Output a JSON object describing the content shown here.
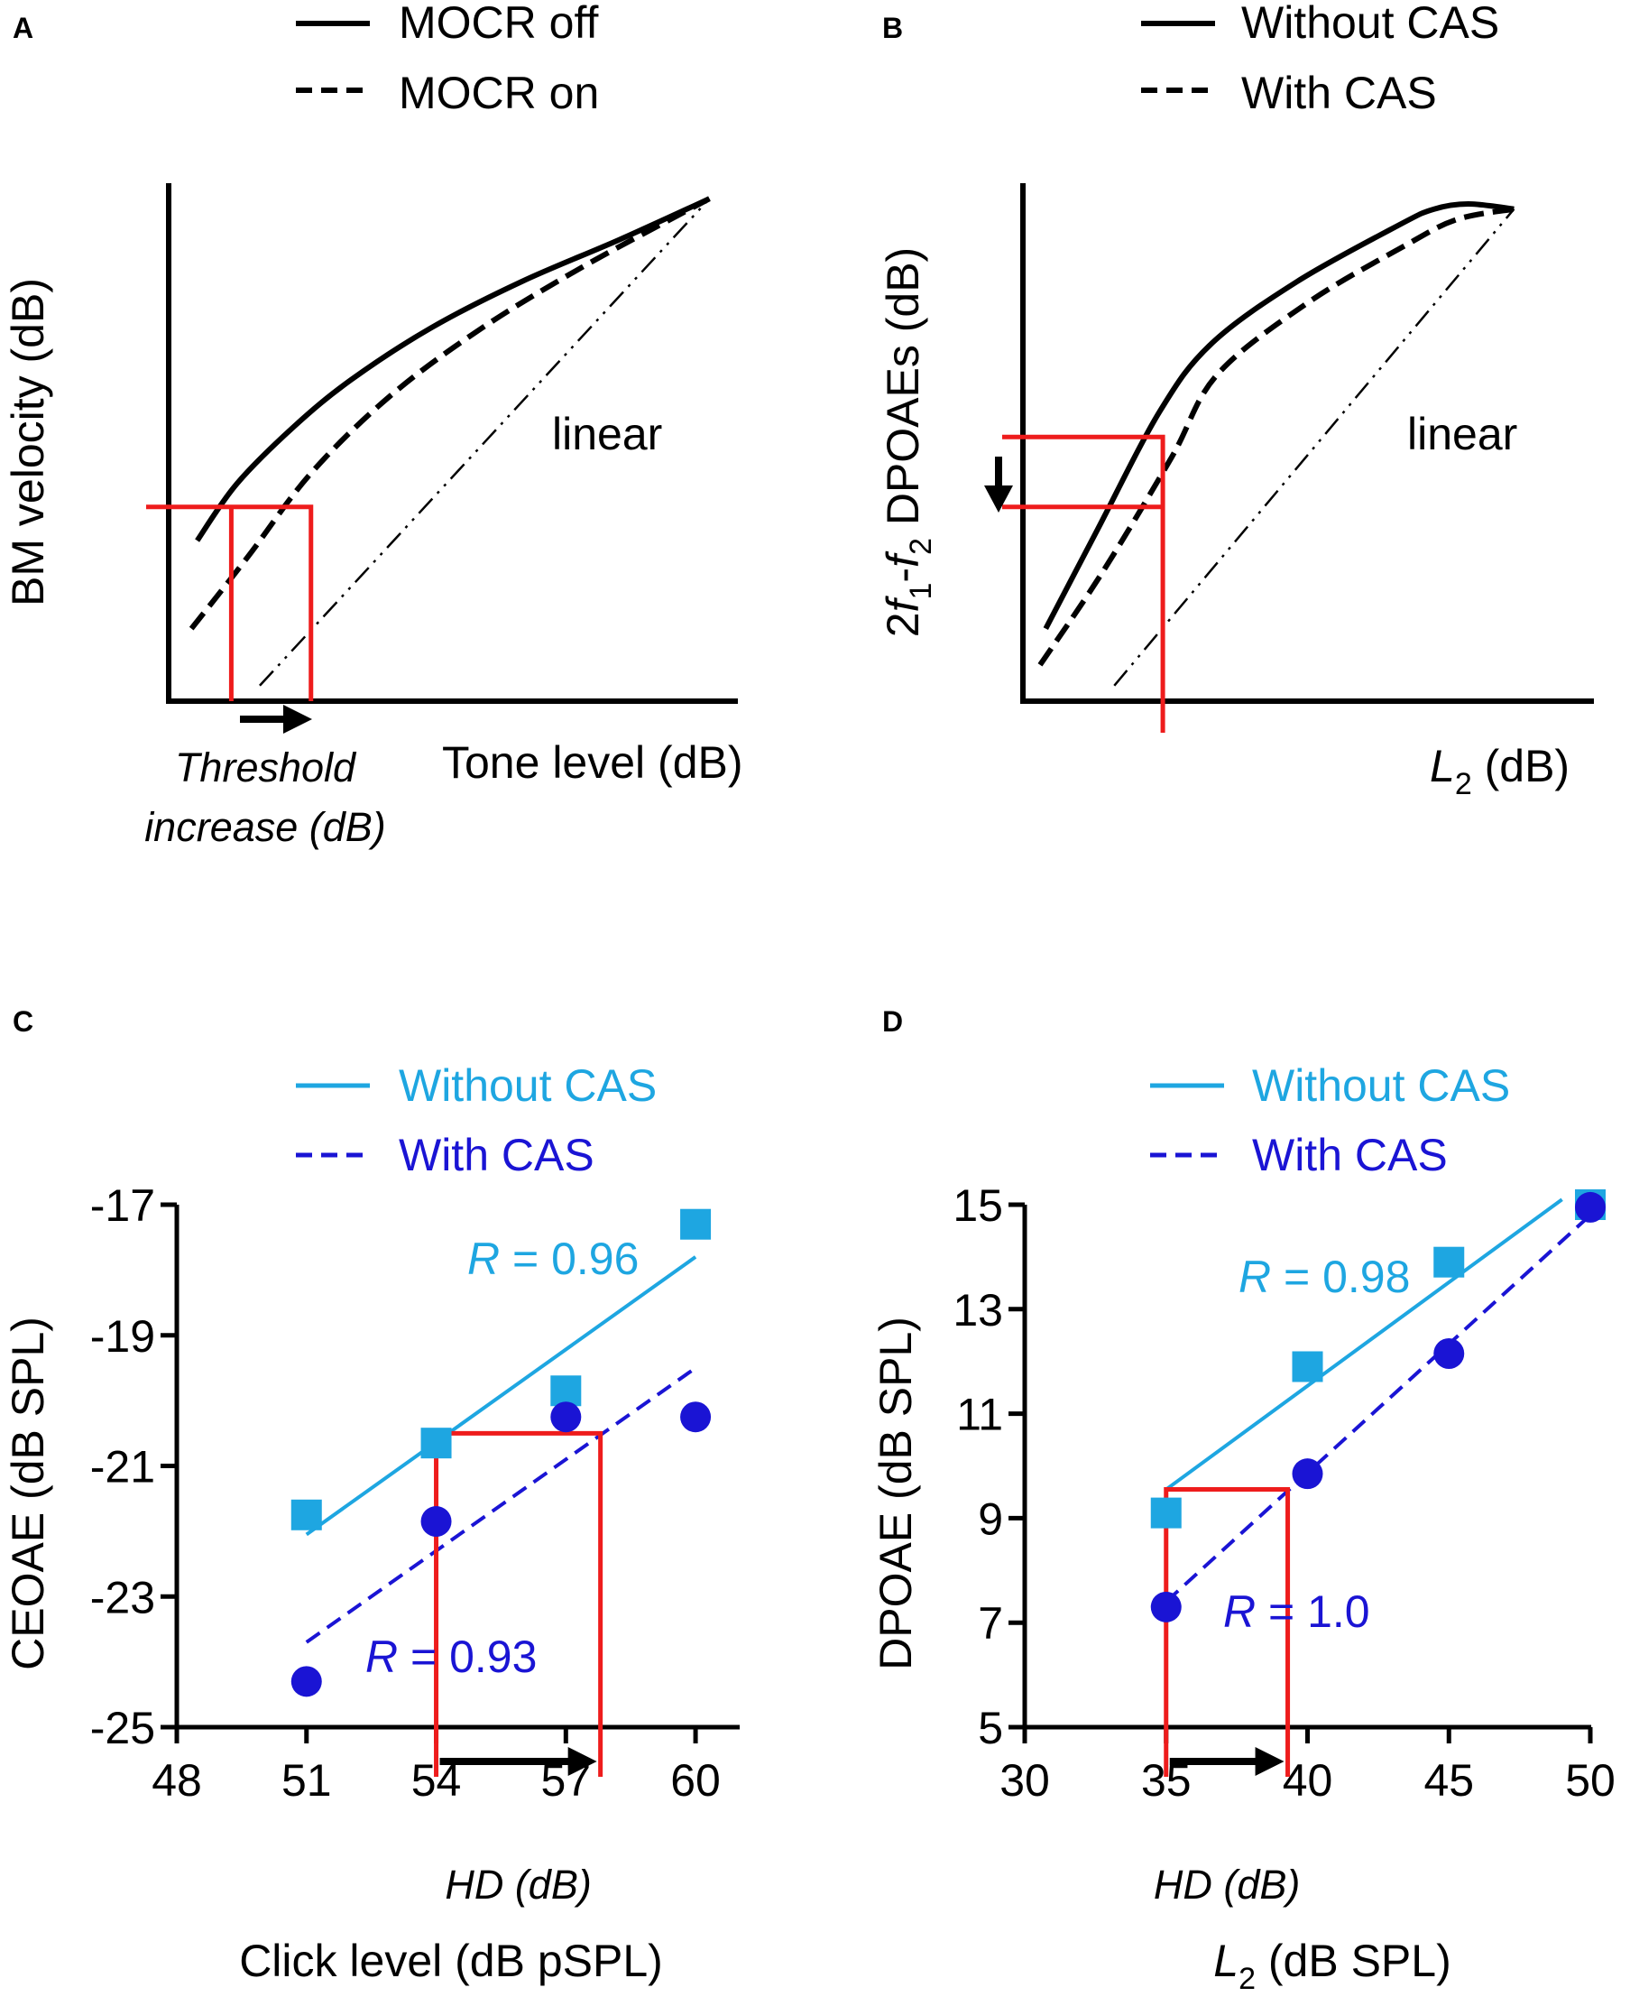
{
  "colors": {
    "black": "#000000",
    "red": "#ee1c1c",
    "light_blue": "#1ea6e1",
    "dark_blue": "#1a14d4"
  },
  "chart_data": [
    {
      "id": "A",
      "type": "line",
      "panel_label": "A",
      "legend": [
        {
          "label": "MOCR off",
          "style": "solid"
        },
        {
          "label": "MOCR on",
          "style": "dashed"
        }
      ],
      "ylabel": "BM velocity (dB)",
      "xlabel": "Tone level (dB)",
      "series": [
        {
          "name": "MOCR off",
          "style": "solid",
          "values": [
            [
              0.05,
              0.31
            ],
            [
              0.12,
              0.42
            ],
            [
              0.22,
              0.53
            ],
            [
              0.32,
              0.62
            ],
            [
              0.46,
              0.72
            ],
            [
              0.62,
              0.81
            ],
            [
              0.79,
              0.89
            ],
            [
              0.95,
              0.97
            ]
          ]
        },
        {
          "name": "MOCR on",
          "style": "dashed",
          "values": [
            [
              0.04,
              0.14
            ],
            [
              0.14,
              0.28
            ],
            [
              0.25,
              0.44
            ],
            [
              0.39,
              0.59
            ],
            [
              0.55,
              0.72
            ],
            [
              0.73,
              0.84
            ],
            [
              0.95,
              0.97
            ]
          ]
        },
        {
          "name": "linear",
          "style": "dash-dot-dot",
          "values": [
            [
              0.16,
              0.03
            ],
            [
              0.95,
              0.97
            ]
          ]
        }
      ],
      "annotations": {
        "linear_label": "linear",
        "threshold_label_line1": "Threshold",
        "threshold_label_line2": "increase (dB)"
      },
      "threshold_box": {
        "x0": 0.11,
        "x1": 0.25,
        "y": 0.375
      }
    },
    {
      "id": "B",
      "type": "line",
      "panel_label": "B",
      "legend": [
        {
          "label": "Without CAS",
          "style": "solid"
        },
        {
          "label": "With CAS",
          "style": "dashed"
        }
      ],
      "ylabel_parts": [
        "2",
        "f",
        "1",
        "-",
        "f",
        "2",
        " DPOAEs (dB)"
      ],
      "xlabel_parts": [
        "L",
        "2",
        " (dB)"
      ],
      "series": [
        {
          "name": "Without CAS",
          "style": "solid",
          "values": [
            [
              0.04,
              0.14
            ],
            [
              0.13,
              0.33
            ],
            [
              0.24,
              0.56
            ],
            [
              0.33,
              0.69
            ],
            [
              0.48,
              0.81
            ],
            [
              0.66,
              0.92
            ],
            [
              0.72,
              0.95
            ],
            [
              0.78,
              0.96
            ],
            [
              0.86,
              0.95
            ]
          ]
        },
        {
          "name": "With CAS",
          "style": "dashed",
          "values": [
            [
              0.03,
              0.07
            ],
            [
              0.14,
              0.25
            ],
            [
              0.26,
              0.47
            ],
            [
              0.34,
              0.63
            ],
            [
              0.5,
              0.77
            ],
            [
              0.67,
              0.88
            ],
            [
              0.76,
              0.93
            ],
            [
              0.86,
              0.95
            ]
          ]
        },
        {
          "name": "linear",
          "style": "dash-dot-dot",
          "values": [
            [
              0.16,
              0.03
            ],
            [
              0.86,
              0.95
            ]
          ]
        }
      ],
      "annotations": {
        "linear_label": "linear"
      },
      "shift_box": {
        "x": 0.245,
        "y_top": 0.51,
        "y_bottom": 0.375
      }
    },
    {
      "id": "C",
      "type": "scatter",
      "panel_label": "C",
      "title": "",
      "xlabel": "Click level (dB pSPL)",
      "ylabel": "CEOAE (dB SPL)",
      "xlim": [
        48,
        61
      ],
      "ylim": [
        -25,
        -17
      ],
      "xticks": [
        48,
        51,
        54,
        57,
        60
      ],
      "yticks": [
        -25,
        -23,
        -21,
        -19,
        -17
      ],
      "legend": [
        {
          "label": "Without CAS",
          "style": "solid",
          "color": "#1ea6e1"
        },
        {
          "label": "With CAS",
          "style": "dashed",
          "color": "#1a14d4"
        }
      ],
      "series": [
        {
          "name": "Without CAS",
          "marker": "square",
          "color": "#1ea6e1",
          "x": [
            51,
            54,
            57,
            60
          ],
          "y": [
            -21.75,
            -20.65,
            -19.85,
            -17.3
          ],
          "fit": {
            "x": [
              51,
              60
            ],
            "y": [
              -22.05,
              -17.8
            ]
          }
        },
        {
          "name": "With CAS",
          "marker": "circle",
          "color": "#1a14d4",
          "x": [
            51,
            54,
            57,
            60
          ],
          "y": [
            -24.3,
            -21.85,
            -20.25,
            -20.25
          ],
          "fit": {
            "x": [
              51,
              60
            ],
            "y": [
              -23.7,
              -19.5
            ]
          }
        }
      ],
      "annotations": {
        "r_without_prefix": "R",
        "r_without_value": " = 0.96",
        "r_with_prefix": "R",
        "r_with_value": " = 0.93",
        "hd_label": "HD (dB)"
      },
      "hd_box": {
        "x0": 54,
        "x1": 57.8,
        "y_top": -20.5
      }
    },
    {
      "id": "D",
      "type": "scatter",
      "panel_label": "D",
      "title": "",
      "xlabel_parts": [
        "L",
        "2",
        " (dB SPL)"
      ],
      "ylabel": "DPOAE (dB SPL)",
      "xlim": [
        30,
        50
      ],
      "ylim": [
        5,
        15
      ],
      "xticks": [
        30,
        35,
        40,
        45,
        50
      ],
      "yticks": [
        5,
        7,
        9,
        11,
        13,
        15
      ],
      "legend": [
        {
          "label": "Without CAS",
          "style": "solid",
          "color": "#1ea6e1"
        },
        {
          "label": "With CAS",
          "style": "dashed",
          "color": "#1a14d4"
        }
      ],
      "series": [
        {
          "name": "Without CAS",
          "marker": "square",
          "color": "#1ea6e1",
          "x": [
            35,
            40,
            45,
            50
          ],
          "y": [
            9.1,
            11.9,
            13.9,
            15.0
          ],
          "fit": {
            "x": [
              35,
              49
            ],
            "y": [
              9.55,
              15.1
            ]
          }
        },
        {
          "name": "With CAS",
          "marker": "circle",
          "color": "#1a14d4",
          "x": [
            35,
            40,
            45,
            50
          ],
          "y": [
            7.3,
            9.85,
            12.15,
            14.95
          ],
          "fit": {
            "x": [
              35,
              50
            ],
            "y": [
              7.4,
              14.8
            ]
          }
        }
      ],
      "annotations": {
        "r_without_prefix": "R",
        "r_without_value": " = 0.98",
        "r_with_prefix": "R",
        "r_with_value": " = 1.0",
        "hd_label": "HD (dB)"
      },
      "hd_box": {
        "x0": 35,
        "x1": 39.3,
        "y_top": 9.55
      }
    }
  ]
}
